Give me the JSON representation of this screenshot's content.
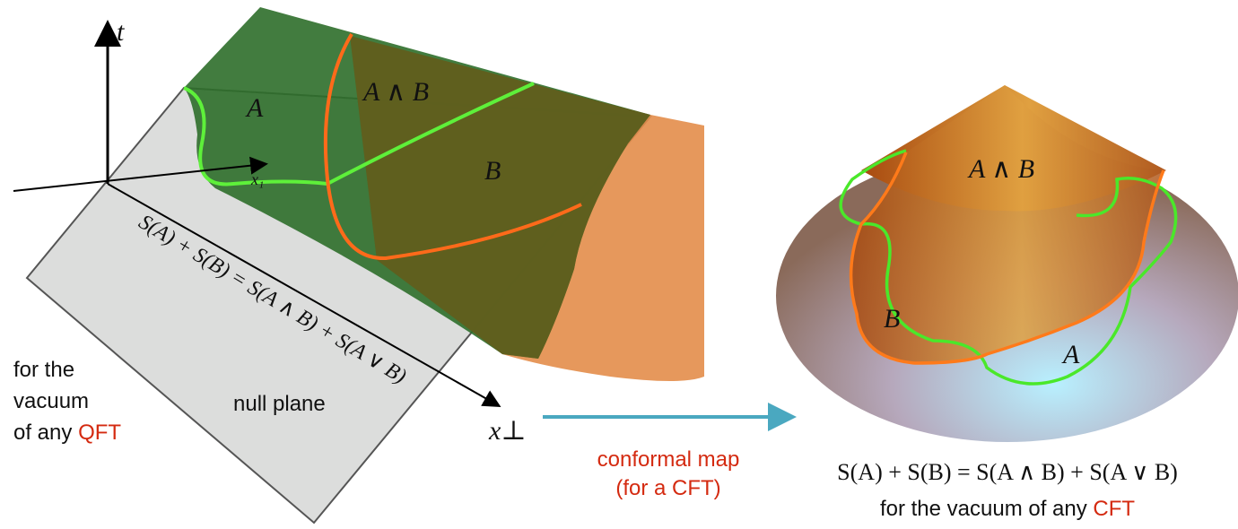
{
  "left": {
    "axis_t": "t",
    "axis_x1": "x₁",
    "axis_xperp": "x⊥",
    "region_a": "A",
    "region_ab": "A ∧ B",
    "region_b": "B",
    "equation": "S(A) + S(B) = S(A ∧ B) + S(A ∨ B)",
    "plane_label": "null plane",
    "note": [
      "for the",
      "vacuum",
      "of any",
      "QFT"
    ]
  },
  "arrow": {
    "line1": "conformal map",
    "line2": "(for a CFT)"
  },
  "right": {
    "region_ab": "A ∧ B",
    "region_b": "B",
    "region_a": "A",
    "equation": "S(A) + S(B) = S(A ∧ B) + S(A ∨ B)",
    "note": "for the vacuum of any",
    "note_accent": "CFT"
  }
}
